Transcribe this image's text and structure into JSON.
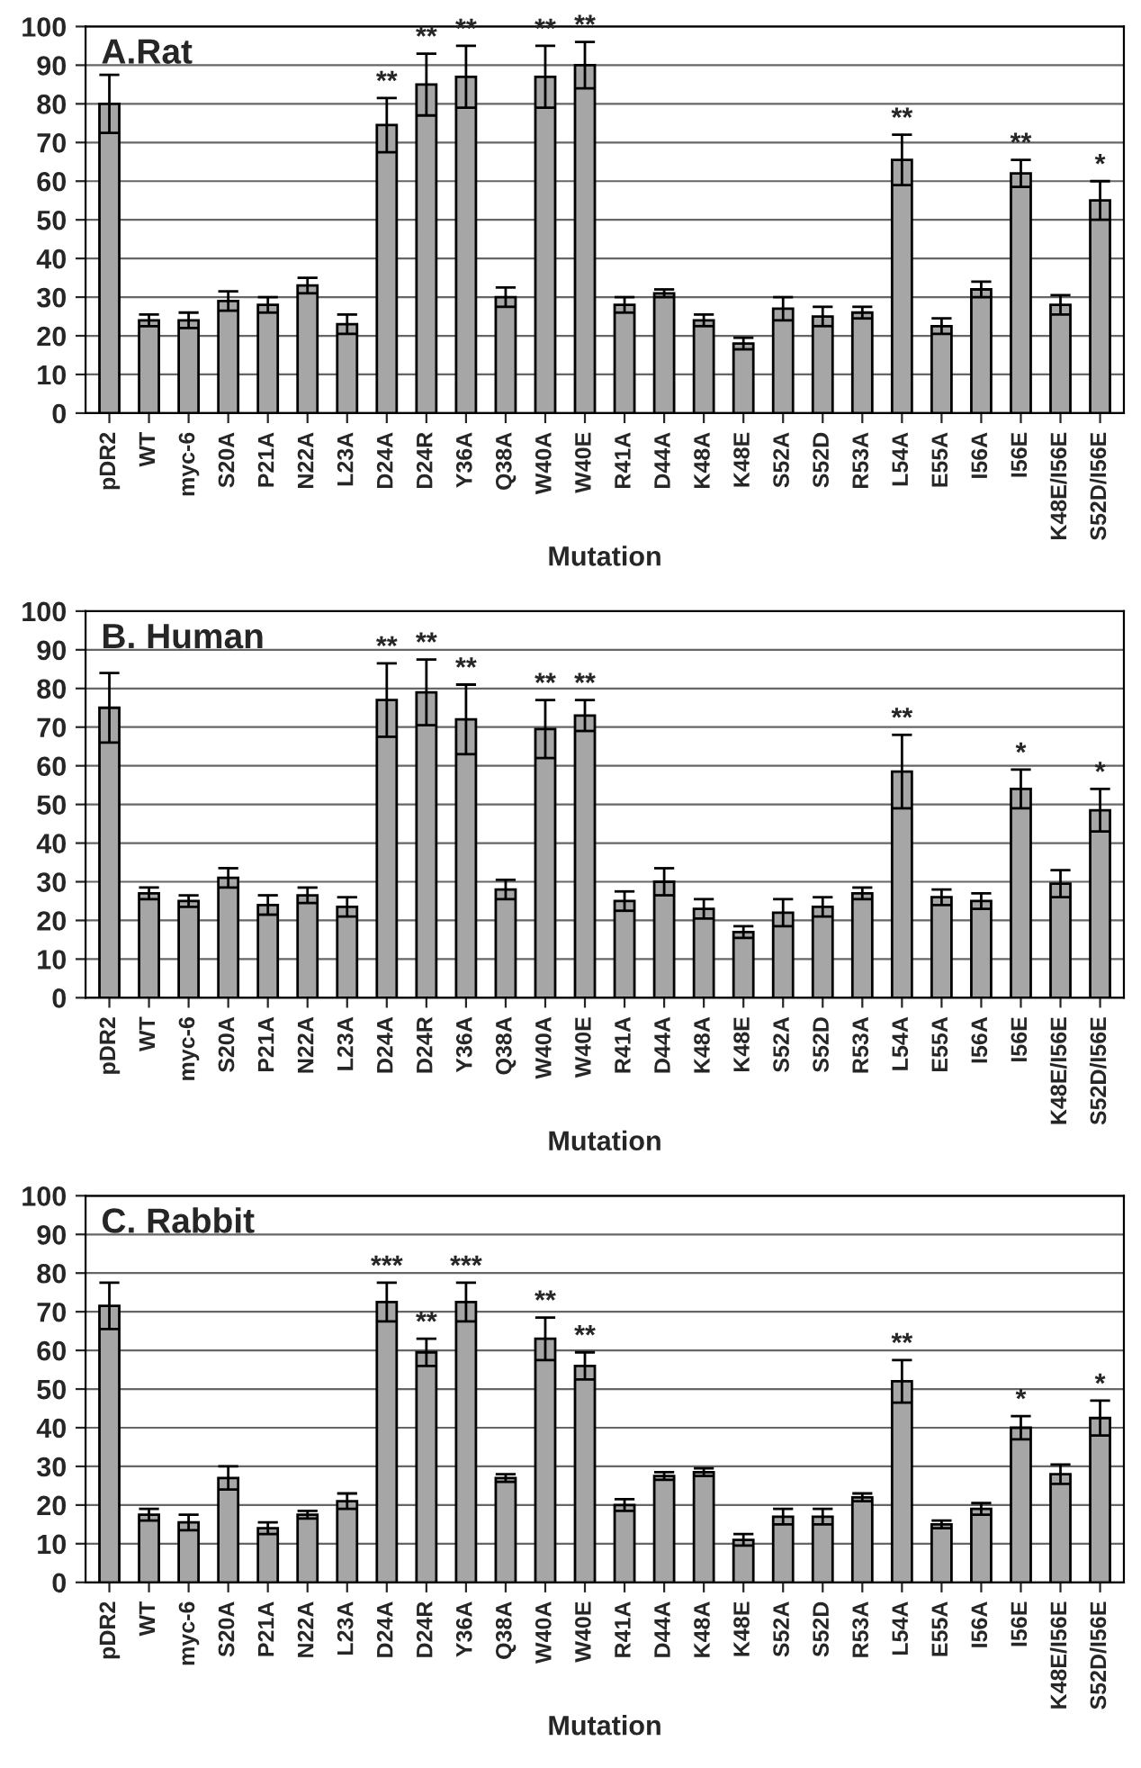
{
  "chart_data": [
    {
      "type": "bar",
      "title": "A.Rat",
      "xlabel": "Mutation",
      "categories": [
        "pDR2",
        "WT",
        "myc-6",
        "S20A",
        "P21A",
        "N22A",
        "L23A",
        "D24A",
        "D24R",
        "Y36A",
        "Q38A",
        "W40A",
        "W40E",
        "R41A",
        "D44A",
        "K48A",
        "K48E",
        "S52A",
        "S52D",
        "R53A",
        "L54A",
        "E55A",
        "I56A",
        "I56E",
        "K48E/I56E",
        "S52D/I56E"
      ],
      "values": [
        80,
        24,
        24,
        29,
        28,
        33,
        23,
        74.5,
        85,
        87,
        30,
        87,
        90,
        28,
        31,
        24,
        18,
        27,
        25,
        26,
        65.5,
        22.5,
        32,
        62,
        28,
        55
      ],
      "errors": [
        7.5,
        1.5,
        2,
        2.5,
        2,
        2,
        2.5,
        7,
        8,
        8,
        2.5,
        8,
        6,
        2,
        1,
        1.5,
        1.5,
        3,
        2.5,
        1.5,
        6.5,
        2,
        2,
        3.5,
        2.5,
        5
      ],
      "value_labels": [
        null,
        null,
        null,
        null,
        null,
        null,
        null,
        "**",
        "**",
        "**",
        null,
        "**",
        "**",
        null,
        null,
        null,
        null,
        null,
        null,
        null,
        "**",
        null,
        null,
        "**",
        null,
        "*"
      ],
      "color": "#a6a6a6",
      "ylim": [
        0,
        100
      ],
      "yticks": [
        0,
        10,
        20,
        30,
        40,
        50,
        60,
        70,
        80,
        90,
        100
      ],
      "grid": "y"
    },
    {
      "type": "bar",
      "title": "B. Human",
      "xlabel": "Mutation",
      "categories": [
        "pDR2",
        "WT",
        "myc-6",
        "S20A",
        "P21A",
        "N22A",
        "L23A",
        "D24A",
        "D24R",
        "Y36A",
        "Q38A",
        "W40A",
        "W40E",
        "R41A",
        "D44A",
        "K48A",
        "K48E",
        "S52A",
        "S52D",
        "R53A",
        "L54A",
        "E55A",
        "I56A",
        "I56E",
        "K48E/I56E",
        "S52D/I56E"
      ],
      "values": [
        75,
        27,
        25,
        31,
        24,
        26.5,
        23.5,
        77,
        79,
        72,
        28,
        69.5,
        73,
        25,
        30,
        23,
        17,
        22,
        23.5,
        27,
        58.5,
        26,
        25,
        54,
        29.5,
        48.5
      ],
      "errors": [
        9,
        1.5,
        1.5,
        2.5,
        2.5,
        2,
        2.5,
        9.5,
        8.5,
        9,
        2.5,
        7.5,
        4,
        2.5,
        3.5,
        2.5,
        1.5,
        3.5,
        2.5,
        1.5,
        9.5,
        2,
        2,
        5,
        3.5,
        5.5
      ],
      "value_labels": [
        null,
        null,
        null,
        null,
        null,
        null,
        null,
        "**",
        "**",
        "**",
        null,
        "**",
        "**",
        null,
        null,
        null,
        null,
        null,
        null,
        null,
        "**",
        null,
        null,
        "*",
        null,
        "*"
      ],
      "color": "#a6a6a6",
      "ylim": [
        0,
        100
      ],
      "yticks": [
        0,
        10,
        20,
        30,
        40,
        50,
        60,
        70,
        80,
        90,
        100
      ],
      "grid": "y"
    },
    {
      "type": "bar",
      "title": "C. Rabbit",
      "xlabel": "Mutation",
      "categories": [
        "pDR2",
        "WT",
        "myc-6",
        "S20A",
        "P21A",
        "N22A",
        "L23A",
        "D24A",
        "D24R",
        "Y36A",
        "Q38A",
        "W40A",
        "W40E",
        "R41A",
        "D44A",
        "K48A",
        "K48E",
        "S52A",
        "S52D",
        "R53A",
        "L54A",
        "E55A",
        "I56A",
        "I56E",
        "K48E/I56E",
        "S52D/I56E"
      ],
      "values": [
        71.5,
        17.5,
        15.5,
        27,
        14,
        17.5,
        21,
        72.5,
        59.5,
        72.5,
        27,
        63,
        56,
        20,
        27.5,
        28.5,
        11,
        17,
        17,
        22,
        52,
        15,
        19,
        40,
        28,
        42.5
      ],
      "errors": [
        6,
        1.5,
        2,
        3,
        1.5,
        1,
        2,
        5,
        3.5,
        5,
        1,
        5.5,
        3.5,
        1.5,
        1,
        1,
        1.5,
        2,
        2,
        1,
        5.5,
        1,
        1.5,
        3,
        2.5,
        4.5
      ],
      "value_labels": [
        null,
        null,
        null,
        null,
        null,
        null,
        null,
        "***",
        "**",
        "***",
        null,
        "**",
        "**",
        null,
        null,
        null,
        null,
        null,
        null,
        null,
        "**",
        null,
        null,
        "*",
        null,
        "*"
      ],
      "color": "#a6a6a6",
      "ylim": [
        0,
        100
      ],
      "yticks": [
        0,
        10,
        20,
        30,
        40,
        50,
        60,
        70,
        80,
        90,
        100
      ],
      "grid": "y"
    }
  ]
}
